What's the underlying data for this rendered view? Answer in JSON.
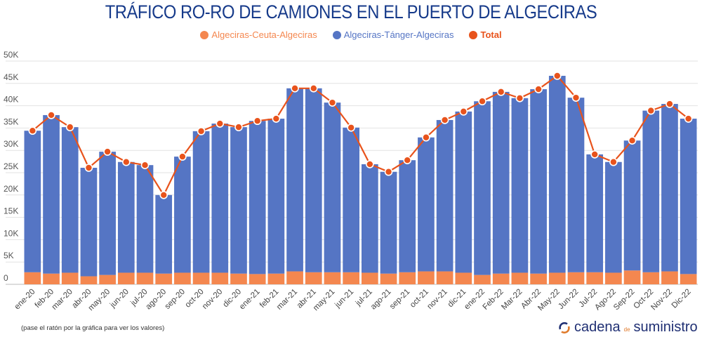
{
  "chart_data": {
    "type": "bar",
    "stacked": true,
    "title": "TRÁFICO RO-RO DE CAMIONES EN EL PUERTO DE ALGECIRAS",
    "xlabel": "",
    "ylabel": "",
    "ylim": [
      0,
      50000
    ],
    "yticks": [
      0,
      5000,
      10000,
      15000,
      20000,
      25000,
      30000,
      35000,
      40000,
      45000,
      50000
    ],
    "ytick_labels": [
      "0",
      "5K",
      "10K",
      "15K",
      "20K",
      "25K",
      "30K",
      "35K",
      "40K",
      "45K",
      "50K"
    ],
    "grid": true,
    "legend_position": "top-center",
    "categories": [
      "ene-20",
      "feb-20",
      "mar-20",
      "abr-20",
      "may-20",
      "jun-20",
      "jul-20",
      "ago-20",
      "sep-20",
      "oct-20",
      "nov-20",
      "dic-20",
      "ene-21",
      "feb-21",
      "mar-21",
      "abr-21",
      "may-21",
      "jun-21",
      "jul-21",
      "ago-21",
      "sep-21",
      "oct-21",
      "nov-21",
      "dic-21",
      "ene-22",
      "Feb-22",
      "Mar-22",
      "Abr-22",
      "May-22",
      "Jun-22",
      "Jul-22",
      "Ago-22",
      "Sep-22",
      "Oct-22",
      "Nov-22",
      "Dic-22"
    ],
    "series": [
      {
        "name": "Algeciras-Ceuta-Algeciras",
        "kind": "bar",
        "color": "#f4874f",
        "values": [
          2700,
          2400,
          2600,
          1800,
          2100,
          2600,
          2600,
          2400,
          2600,
          2600,
          2600,
          2400,
          2300,
          2400,
          2900,
          2700,
          2700,
          2700,
          2600,
          2400,
          2700,
          2900,
          2900,
          2600,
          2100,
          2400,
          2600,
          2400,
          2600,
          2700,
          2700,
          2600,
          3100,
          2700,
          2900,
          2300
        ]
      },
      {
        "name": "Algeciras-Tánger-Algeciras",
        "kind": "bar",
        "color": "#5575c4",
        "values": [
          31700,
          35500,
          32600,
          24300,
          27600,
          24800,
          24100,
          17600,
          26000,
          31700,
          33400,
          32800,
          34300,
          34700,
          41000,
          41200,
          38000,
          32400,
          24300,
          22800,
          25100,
          30000,
          33900,
          36100,
          38900,
          40700,
          39100,
          41300,
          44100,
          39100,
          26400,
          24800,
          29100,
          36200,
          37500,
          34800
        ]
      },
      {
        "name": "Total",
        "kind": "line",
        "color": "#e8531c",
        "values": [
          34400,
          37900,
          35200,
          26100,
          29700,
          27400,
          26700,
          20000,
          28600,
          34300,
          36000,
          35200,
          36600,
          37100,
          43900,
          43900,
          40700,
          35100,
          26900,
          25200,
          27800,
          32900,
          36800,
          38700,
          41000,
          43100,
          41700,
          43700,
          46700,
          41800,
          29100,
          27400,
          32200,
          38900,
          40400,
          37100
        ]
      }
    ]
  },
  "footer": {
    "note": "(pase el ratón por la gráfica para ver los valores)",
    "logo_main": "cadena",
    "logo_de": "de",
    "logo_end": "suministro"
  }
}
